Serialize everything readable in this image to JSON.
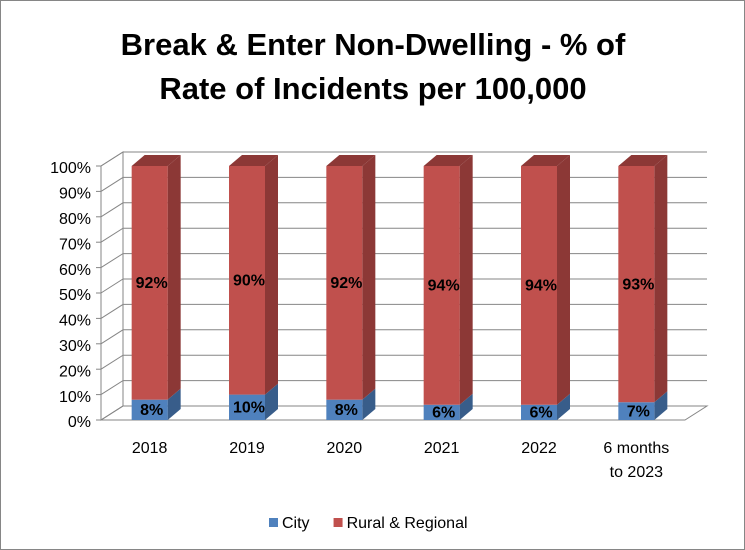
{
  "chart_data": {
    "type": "bar",
    "stacked": true,
    "three_d": true,
    "title": "Break & Enter Non-Dwelling - %  of Rate of Incidents per 100,000",
    "categories": [
      "2018",
      "2019",
      "2020",
      "2021",
      "2022",
      "6 months to 2023"
    ],
    "series": [
      {
        "name": "City",
        "color": "#4f81bd",
        "side_color": "#385d8a",
        "values": [
          8,
          10,
          8,
          6,
          6,
          7
        ],
        "value_labels": [
          "8%",
          "10%",
          "8%",
          "6%",
          "6%",
          "7%"
        ]
      },
      {
        "name": "Rural & Regional",
        "color": "#c0504d",
        "side_color": "#8c3836",
        "values": [
          92,
          90,
          92,
          94,
          94,
          93
        ],
        "value_labels": [
          "92%",
          "90%",
          "92%",
          "94%",
          "94%",
          "93%"
        ]
      }
    ],
    "ylim": [
      0,
      100
    ],
    "yticks": [
      {
        "value": 0,
        "label": "0%"
      },
      {
        "value": 10,
        "label": "10%"
      },
      {
        "value": 20,
        "label": "20%"
      },
      {
        "value": 30,
        "label": "30%"
      },
      {
        "value": 40,
        "label": "40%"
      },
      {
        "value": 50,
        "label": "50%"
      },
      {
        "value": 60,
        "label": "60%"
      },
      {
        "value": 70,
        "label": "70%"
      },
      {
        "value": 80,
        "label": "80%"
      },
      {
        "value": 90,
        "label": "90%"
      },
      {
        "value": 100,
        "label": "100%"
      }
    ],
    "grid": true,
    "legend": "bottom"
  }
}
